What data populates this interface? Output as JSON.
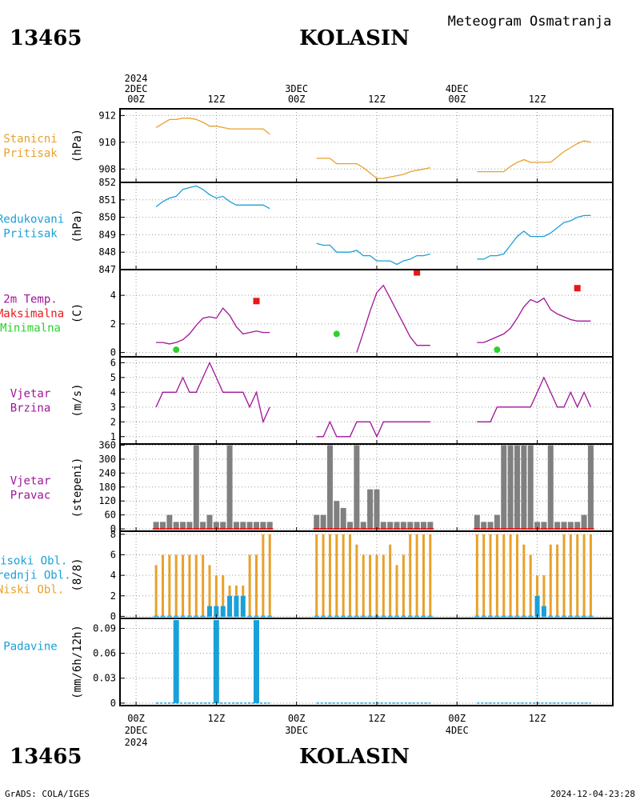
{
  "header": {
    "station_id": "13465",
    "station_name": "KOLASIN",
    "subtitle": "Meteogram Osmatranja"
  },
  "footer": {
    "station_id": "13465",
    "station_name": "KOLASIN",
    "credit": "GrADS: COLA/IGES",
    "timestamp": "2024-12-04-23:28"
  },
  "time_axis": {
    "top_labels": [
      {
        "h": 0,
        "lines": [
          "2024",
          "2DEC",
          "00Z"
        ]
      },
      {
        "h": 12,
        "lines": [
          "12Z"
        ]
      },
      {
        "h": 24,
        "lines": [
          "3DEC",
          "00Z"
        ]
      },
      {
        "h": 36,
        "lines": [
          "12Z"
        ]
      },
      {
        "h": 48,
        "lines": [
          "4DEC",
          "00Z"
        ]
      },
      {
        "h": 60,
        "lines": [
          "12Z"
        ]
      }
    ],
    "bottom_labels": [
      {
        "h": 0,
        "lines": [
          "00Z",
          "2DEC",
          "2024"
        ]
      },
      {
        "h": 12,
        "lines": [
          "12Z"
        ]
      },
      {
        "h": 24,
        "lines": [
          "00Z",
          "3DEC"
        ]
      },
      {
        "h": 36,
        "lines": [
          "12Z"
        ]
      },
      {
        "h": 48,
        "lines": [
          "00Z",
          "4DEC"
        ]
      },
      {
        "h": 60,
        "lines": [
          "12Z"
        ]
      }
    ]
  },
  "colors": {
    "orange": "#e8a12c",
    "cyan": "#1aa0d8",
    "magenta": "#a0149a",
    "red": "#e81818",
    "green": "#2ad22a",
    "gray": "#808080",
    "bar_red": "#e81818"
  },
  "chart_data": [
    {
      "name": "station_pressure",
      "type": "line",
      "labels": [
        "Stanicni",
        "Pritisak"
      ],
      "label_color": "#e8a12c",
      "unit": "(hPa)",
      "ylim": [
        907,
        912.5
      ],
      "yticks": [
        908,
        910,
        912
      ],
      "series": [
        {
          "color": "#e8a12c",
          "x": [
            3,
            4,
            5,
            6,
            7,
            8,
            9,
            10,
            11,
            12,
            13,
            14,
            15,
            16,
            17,
            18,
            19,
            20
          ],
          "y": [
            911.1,
            911.4,
            911.7,
            911.7,
            911.8,
            911.8,
            911.7,
            911.5,
            911.2,
            911.2,
            911.1,
            911.0,
            911.0,
            911.0,
            911.0,
            911.0,
            911.0,
            910.6
          ]
        },
        {
          "color": "#e8a12c",
          "x": [
            27,
            28,
            29,
            30,
            31,
            32,
            33,
            34,
            35,
            36,
            37,
            38,
            39,
            40,
            41,
            42,
            43,
            44
          ],
          "y": [
            908.8,
            908.8,
            908.8,
            908.4,
            908.4,
            908.4,
            908.4,
            908.1,
            907.7,
            907.3,
            907.3,
            907.4,
            907.5,
            907.6,
            907.8,
            907.9,
            908.0,
            908.1
          ]
        },
        {
          "color": "#e8a12c",
          "x": [
            51,
            52,
            53,
            54,
            55,
            56,
            57,
            58,
            59,
            60,
            61,
            62,
            63,
            64,
            65,
            66,
            67,
            68
          ],
          "y": [
            907.8,
            907.8,
            907.8,
            907.8,
            907.8,
            908.2,
            908.5,
            908.7,
            908.5,
            908.5,
            908.5,
            908.5,
            908.9,
            909.3,
            909.6,
            909.9,
            910.1,
            910.0
          ]
        }
      ]
    },
    {
      "name": "reduced_pressure",
      "type": "line",
      "labels": [
        "Redukovani",
        "Pritisak"
      ],
      "label_color": "#1aa0d8",
      "unit": "(hPa)",
      "ylim": [
        847,
        852
      ],
      "yticks": [
        847,
        848,
        849,
        850,
        851,
        852
      ],
      "series": [
        {
          "color": "#1aa0d8",
          "x": [
            3,
            4,
            5,
            6,
            7,
            8,
            9,
            10,
            11,
            12,
            13,
            14,
            15,
            16,
            17,
            18,
            19,
            20
          ],
          "y": [
            850.6,
            850.9,
            851.1,
            851.2,
            851.6,
            851.7,
            851.8,
            851.6,
            851.3,
            851.1,
            851.2,
            850.9,
            850.7,
            850.7,
            850.7,
            850.7,
            850.7,
            850.5
          ]
        },
        {
          "color": "#1aa0d8",
          "x": [
            27,
            28,
            29,
            30,
            31,
            32,
            33,
            34,
            35,
            36,
            37,
            38,
            39,
            40,
            41,
            42,
            43,
            44
          ],
          "y": [
            848.5,
            848.4,
            848.4,
            848.0,
            848.0,
            848.0,
            848.1,
            847.8,
            847.8,
            847.5,
            847.5,
            847.5,
            847.3,
            847.5,
            847.6,
            847.8,
            847.8,
            847.9
          ]
        },
        {
          "color": "#1aa0d8",
          "x": [
            51,
            52,
            53,
            54,
            55,
            56,
            57,
            58,
            59,
            60,
            61,
            62,
            63,
            64,
            65,
            66,
            67,
            68
          ],
          "y": [
            847.6,
            847.6,
            847.8,
            847.8,
            847.9,
            848.4,
            848.9,
            849.2,
            848.9,
            848.9,
            848.9,
            849.1,
            849.4,
            849.7,
            849.8,
            850.0,
            850.1,
            850.1
          ]
        }
      ]
    },
    {
      "name": "temperature",
      "type": "line",
      "labels": [
        "2m Temp.",
        "Maksimalna",
        "Minimalna"
      ],
      "label_colors": [
        "#a0149a",
        "#e81818",
        "#2ad22a"
      ],
      "unit": "(C)",
      "ylim": [
        -0.3,
        5.8
      ],
      "yticks": [
        0,
        2,
        4
      ],
      "series": [
        {
          "color": "#a0149a",
          "x": [
            3,
            4,
            5,
            6,
            7,
            8,
            9,
            10,
            11,
            12,
            13,
            14,
            15,
            16,
            17,
            18,
            19,
            20
          ],
          "y": [
            0.7,
            0.7,
            0.6,
            0.7,
            0.9,
            1.3,
            1.9,
            2.4,
            2.5,
            2.4,
            3.1,
            2.6,
            1.8,
            1.3,
            1.4,
            1.5,
            1.4,
            1.4
          ]
        },
        {
          "color": "#a0149a",
          "x": [
            33,
            34,
            35,
            36,
            37,
            38,
            39,
            40,
            41,
            42,
            43,
            44
          ],
          "y": [
            0,
            1.4,
            2.9,
            4.2,
            4.7,
            3.8,
            2.9,
            2.0,
            1.1,
            0.5,
            0.5,
            0.5
          ]
        },
        {
          "color": "#a0149a",
          "x": [
            51,
            52,
            53,
            54,
            55,
            56,
            57,
            58,
            59,
            60,
            61,
            62,
            63,
            64,
            65,
            66,
            67,
            68
          ],
          "y": [
            0.7,
            0.7,
            0.9,
            1.1,
            1.3,
            1.7,
            2.4,
            3.2,
            3.7,
            3.5,
            3.8,
            3.0,
            2.7,
            2.5,
            2.3,
            2.2,
            2.2,
            2.2
          ]
        }
      ],
      "max_points": {
        "color": "#e81818",
        "x": [
          18,
          42,
          66
        ],
        "y": [
          3.6,
          5.6,
          4.5
        ]
      },
      "min_points": {
        "color": "#2ad22a",
        "x": [
          6,
          30,
          54
        ],
        "y": [
          0.2,
          1.3,
          0.2
        ]
      }
    },
    {
      "name": "wind_speed",
      "type": "line",
      "labels": [
        "Vjetar",
        "Brzina"
      ],
      "label_color": "#a0149a",
      "unit": "(m/s)",
      "ylim": [
        0.5,
        6.4
      ],
      "yticks": [
        1,
        2,
        3,
        4,
        5,
        6
      ],
      "series": [
        {
          "color": "#a0149a",
          "x": [
            3,
            4,
            5,
            6,
            7,
            8,
            9,
            10,
            11,
            12,
            13,
            14,
            15,
            16,
            17,
            18,
            19,
            20
          ],
          "y": [
            3,
            4,
            4,
            4,
            5,
            4,
            4,
            5,
            6,
            5,
            4,
            4,
            4,
            4,
            3,
            4,
            2,
            3
          ]
        },
        {
          "color": "#a0149a",
          "x": [
            27,
            28,
            29,
            30,
            31,
            32,
            33,
            34,
            35,
            36,
            37,
            38,
            39,
            40,
            41,
            42,
            43,
            44
          ],
          "y": [
            1,
            1,
            2,
            1,
            1,
            1,
            2,
            2,
            2,
            1,
            2,
            2,
            2,
            2,
            2,
            2,
            2,
            2
          ]
        },
        {
          "color": "#a0149a",
          "x": [
            51,
            52,
            53,
            54,
            55,
            56,
            57,
            58,
            59,
            60,
            61,
            62,
            63,
            64,
            65,
            66,
            67,
            68
          ],
          "y": [
            2,
            2,
            2,
            3,
            3,
            3,
            3,
            3,
            3,
            4,
            5,
            4,
            3,
            3,
            4,
            3,
            4,
            3
          ]
        }
      ]
    },
    {
      "name": "wind_direction",
      "type": "bar",
      "labels": [
        "Vjetar",
        "Pravac"
      ],
      "label_color": "#a0149a",
      "unit": "(stepeni)",
      "ylim": [
        -10,
        365
      ],
      "yticks": [
        0,
        60,
        120,
        180,
        240,
        300,
        360
      ],
      "bar_color": "#808080",
      "zero_color": "#e81818",
      "x": [
        3,
        4,
        5,
        6,
        7,
        8,
        9,
        10,
        11,
        12,
        13,
        14,
        15,
        16,
        17,
        18,
        19,
        20,
        27,
        28,
        29,
        30,
        31,
        32,
        33,
        34,
        35,
        36,
        37,
        38,
        39,
        40,
        41,
        42,
        43,
        44,
        51,
        52,
        53,
        54,
        55,
        56,
        57,
        58,
        59,
        60,
        61,
        62,
        63,
        64,
        65,
        66,
        67,
        68
      ],
      "values": [
        30,
        30,
        60,
        30,
        30,
        30,
        360,
        30,
        60,
        30,
        30,
        360,
        30,
        30,
        30,
        30,
        30,
        30,
        60,
        60,
        360,
        120,
        90,
        30,
        360,
        30,
        170,
        170,
        30,
        30,
        30,
        30,
        30,
        30,
        30,
        30,
        60,
        30,
        30,
        60,
        360,
        360,
        360,
        360,
        360,
        30,
        30,
        360,
        30,
        30,
        30,
        30,
        60,
        360
      ]
    },
    {
      "name": "cloud_cover",
      "type": "bar",
      "labels": [
        "Visoki Obl.",
        "Srednji Obl.",
        "Niski Obl."
      ],
      "label_colors": [
        "#1aa0d8",
        "#1aa0d8",
        "#e8a12c"
      ],
      "unit": "(8/8)",
      "ylim": [
        -0.2,
        8.3
      ],
      "yticks": [
        0,
        2,
        4,
        6,
        8
      ],
      "series": [
        {
          "name": "Niski Obl.",
          "color": "#e8a12c",
          "x": [
            3,
            4,
            5,
            6,
            7,
            8,
            9,
            10,
            11,
            12,
            13,
            14,
            15,
            16,
            17,
            18,
            19,
            20,
            27,
            28,
            29,
            30,
            31,
            32,
            33,
            34,
            35,
            36,
            37,
            38,
            39,
            40,
            41,
            42,
            43,
            44,
            51,
            52,
            53,
            54,
            55,
            56,
            57,
            58,
            59,
            60,
            61,
            62,
            63,
            64,
            65,
            66,
            67,
            68
          ],
          "values": [
            5,
            6,
            6,
            6,
            6,
            6,
            6,
            6,
            5,
            4,
            4,
            3,
            3,
            3,
            6,
            6,
            8,
            8,
            8,
            8,
            8,
            8,
            8,
            8,
            7,
            6,
            6,
            6,
            6,
            7,
            5,
            6,
            8,
            8,
            8,
            8,
            8,
            8,
            8,
            8,
            8,
            8,
            8,
            7,
            6,
            4,
            4,
            7,
            7,
            8,
            8,
            8,
            8,
            8
          ]
        },
        {
          "name": "Srednji Obl.",
          "color": "#1aa0d8",
          "x": [
            11,
            12,
            13,
            14,
            15,
            16,
            60,
            61
          ],
          "values": [
            1,
            1,
            1,
            2,
            2,
            2,
            2,
            1
          ]
        }
      ]
    },
    {
      "name": "precipitation",
      "type": "bar",
      "labels": [
        "Padavine"
      ],
      "label_color": "#1aa0d8",
      "unit": "(mm/6h/12h)",
      "ylim": [
        -0.003,
        0.102
      ],
      "yticks": [
        "0",
        "0.03",
        "0.06",
        "0.09"
      ],
      "ytick_values": [
        0,
        0.03,
        0.06,
        0.09
      ],
      "bar_color": "#1aa0d8",
      "x": [
        6,
        12,
        18
      ],
      "values": [
        0.1,
        0.1,
        0.1
      ],
      "baseline_ranges": [
        [
          3,
          20
        ],
        [
          27,
          44
        ],
        [
          51,
          68
        ]
      ]
    }
  ]
}
